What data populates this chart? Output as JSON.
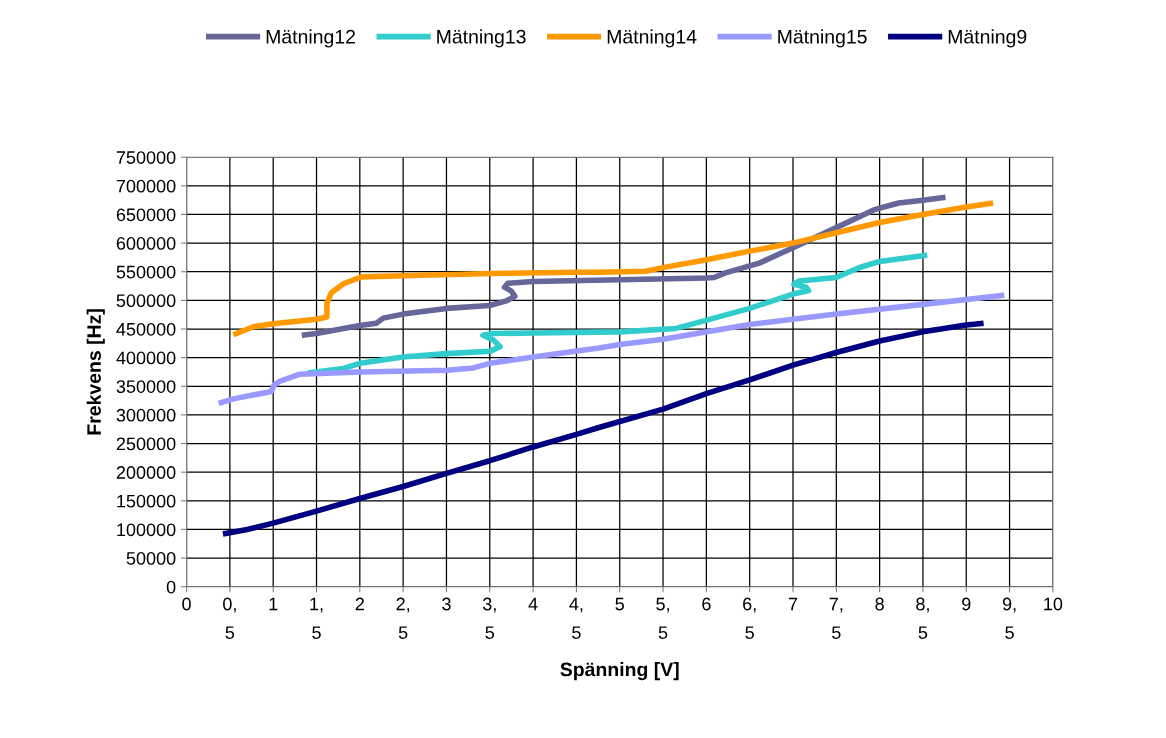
{
  "chart_data": {
    "type": "line",
    "xlabel": "Spänning [V]",
    "ylabel": "Frekvens [Hz]",
    "xlim": [
      0,
      10
    ],
    "xticks": [
      0,
      {
        "value": 0.5,
        "label": "0,\n5"
      },
      1,
      {
        "value": 1.5,
        "label": "1,\n5"
      },
      2,
      {
        "value": 2.5,
        "label": "2,\n5"
      },
      3,
      {
        "value": 3.5,
        "label": "3,\n5"
      },
      4,
      {
        "value": 4.5,
        "label": "4,\n5"
      },
      5,
      {
        "value": 5.5,
        "label": "5,\n5"
      },
      6,
      {
        "value": 6.5,
        "label": "6,\n5"
      },
      7,
      {
        "value": 7.5,
        "label": "7,\n5"
      },
      8,
      {
        "value": 8.5,
        "label": "8,\n5"
      },
      9,
      {
        "value": 9.5,
        "label": "9,\n5"
      },
      10
    ],
    "ylim": [
      0,
      750000
    ],
    "yticks": [
      0,
      50000,
      100000,
      150000,
      200000,
      250000,
      300000,
      350000,
      400000,
      450000,
      500000,
      550000,
      600000,
      650000,
      700000,
      750000
    ],
    "grid": true,
    "legend": "top",
    "marker": "none",
    "line_style": "solid",
    "series": [
      {
        "name": "Mätning12",
        "color": "#666699",
        "x": [
          1.33,
          1.5,
          2.0,
          2.19,
          2.27,
          2.5,
          3.0,
          3.5,
          3.69,
          3.79,
          3.75,
          3.67,
          3.71,
          4.0,
          5.0,
          6.0,
          6.09,
          6.22,
          6.61,
          7.0,
          7.5,
          7.95,
          8.22,
          8.5,
          8.76
        ],
        "values": [
          439000,
          442000,
          456000,
          460000,
          469000,
          476000,
          486000,
          491000,
          499000,
          507000,
          516000,
          523000,
          530000,
          533000,
          536000,
          539000,
          540000,
          548000,
          565000,
          592000,
          627000,
          659000,
          670000,
          675000,
          680000
        ]
      },
      {
        "name": "Mätning13",
        "color": "#33cccc",
        "x": [
          1.4,
          1.81,
          2.0,
          2.5,
          3.0,
          3.5,
          3.62,
          3.54,
          3.42,
          3.52,
          4.0,
          5.0,
          5.65,
          5.92,
          6.5,
          7.0,
          7.18,
          7.15,
          7.01,
          7.07,
          7.5,
          7.76,
          8.0,
          8.5,
          8.55
        ],
        "values": [
          373000,
          381000,
          390000,
          401000,
          407000,
          411000,
          419000,
          431000,
          439000,
          442000,
          443000,
          445000,
          451000,
          462000,
          486000,
          511000,
          517000,
          523000,
          528000,
          534000,
          540000,
          557000,
          568000,
          578000,
          579000
        ]
      },
      {
        "name": "Mätning14",
        "color": "#ff9900",
        "x": [
          0.54,
          0.77,
          1.0,
          1.5,
          1.62,
          1.62,
          1.67,
          1.81,
          2.02,
          2.5,
          3.51,
          4.51,
          4.76,
          5.3,
          5.53,
          6.0,
          6.5,
          7.0,
          7.5,
          8.0,
          8.5,
          9.0,
          9.31
        ],
        "values": [
          440000,
          454000,
          459000,
          467000,
          471000,
          495000,
          513000,
          529000,
          541000,
          543000,
          547000,
          549000,
          549000,
          551000,
          558000,
          571000,
          586000,
          600000,
          618000,
          636000,
          650000,
          663000,
          670000
        ]
      },
      {
        "name": "Mätning15",
        "color": "#9999ff",
        "x": [
          0.37,
          0.54,
          0.98,
          1.01,
          1.08,
          1.31,
          2.0,
          3.0,
          3.31,
          3.5,
          4.0,
          4.76,
          5.0,
          5.5,
          6.5,
          7.5,
          8.5,
          9.44
        ],
        "values": [
          320000,
          328000,
          341000,
          352000,
          359000,
          371000,
          375000,
          378000,
          382000,
          390000,
          401000,
          417000,
          423000,
          432000,
          458000,
          476000,
          493000,
          509000
        ]
      },
      {
        "name": "Mätning9",
        "color": "#000080",
        "x": [
          0.42,
          0.7,
          1.0,
          1.5,
          2.0,
          2.5,
          3.0,
          3.5,
          4.0,
          4.5,
          4.76,
          5.5,
          6.0,
          6.5,
          7.0,
          7.5,
          8.0,
          8.5,
          9.0,
          9.2
        ],
        "values": [
          92000,
          100000,
          111000,
          132000,
          154000,
          175000,
          198000,
          220000,
          244000,
          266000,
          278000,
          310000,
          337000,
          361000,
          387000,
          409000,
          429000,
          445000,
          457000,
          460000
        ]
      }
    ]
  }
}
